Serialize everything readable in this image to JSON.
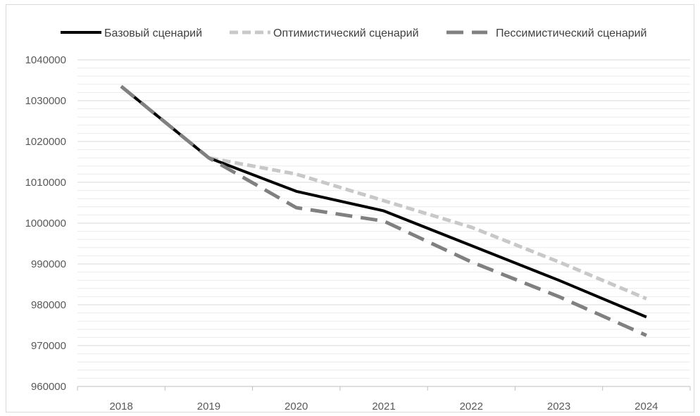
{
  "chart_data": {
    "type": "line",
    "title": "",
    "xlabel": "",
    "ylabel": "",
    "x": [
      "2018",
      "2019",
      "2020",
      "2021",
      "2022",
      "2023",
      "2024"
    ],
    "ylim": [
      960000,
      1040000
    ],
    "yticks": [
      960000,
      970000,
      980000,
      990000,
      1000000,
      1010000,
      1020000,
      1030000,
      1040000
    ],
    "grid": "horizontal",
    "legend": "top",
    "series": [
      {
        "name": "Базовый сценарий",
        "values": [
          1033500,
          1016000,
          1007800,
          1003000,
          994500,
          986000,
          977000
        ],
        "color": "#000000",
        "style": "solid"
      },
      {
        "name": "Оптимистический сценарий",
        "values": [
          1033500,
          1016000,
          1012000,
          1005500,
          999000,
          990500,
          981500
        ],
        "color": "#c8c8c8",
        "style": "short-dash"
      },
      {
        "name": "Пессимистический сценарий",
        "values": [
          1033500,
          1016000,
          1003800,
          1000500,
          990500,
          982000,
          972500
        ],
        "color": "#808080",
        "style": "long-dash"
      }
    ]
  }
}
